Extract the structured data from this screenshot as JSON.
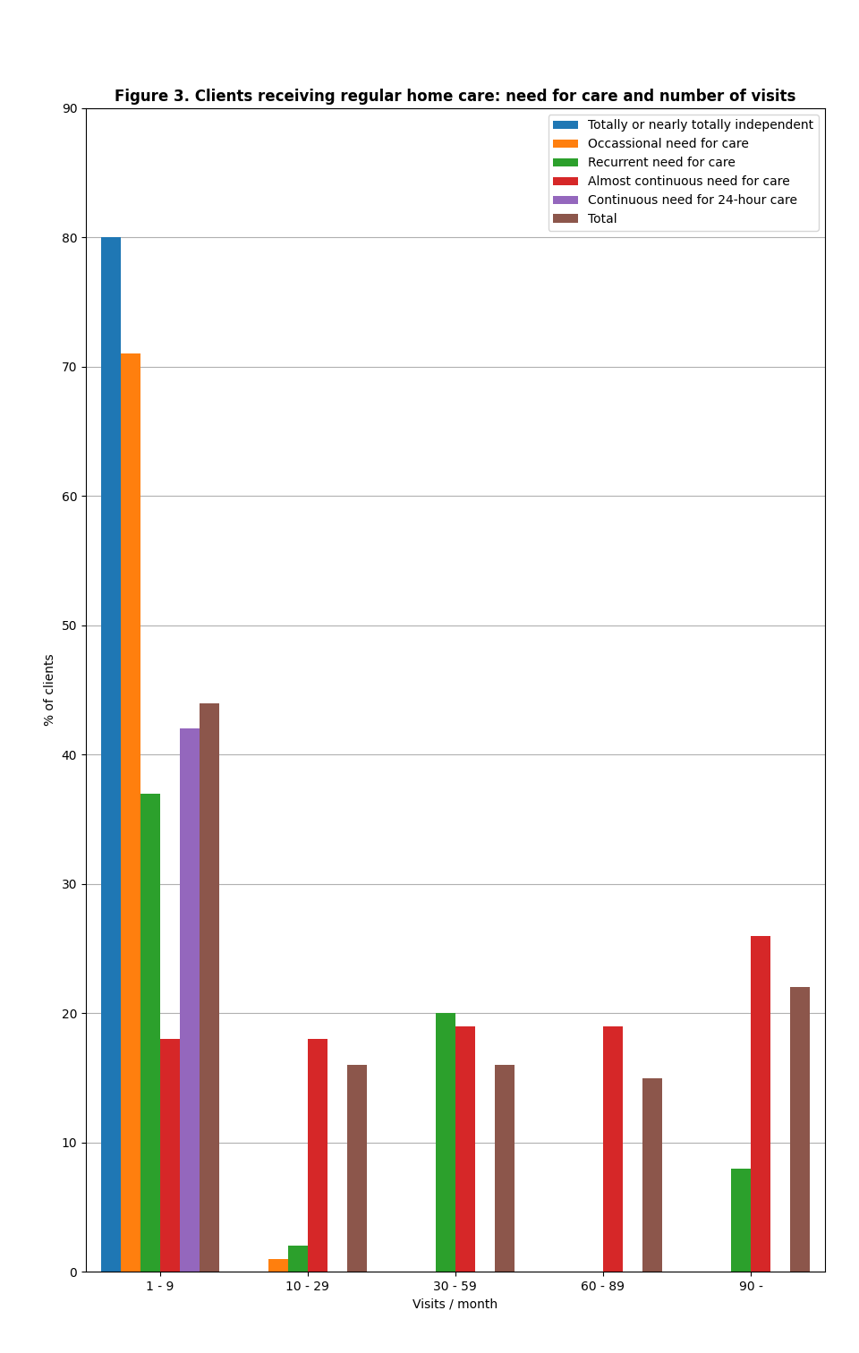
{
  "chart_data": {
    "type": "bar",
    "title": "Figure 3. Clients receiving regular home care: need for care and number of visits",
    "xlabel": "Visits / month",
    "ylabel": "% of clients",
    "categories": [
      "1 - 9",
      "10 - 29",
      "30 - 59",
      "60 - 89",
      "90 -"
    ],
    "series": [
      {
        "name": "Totally or nearly totally independent",
        "values": [
          80,
          0,
          0,
          0,
          0
        ]
      },
      {
        "name": "Occassional need for care",
        "values": [
          71,
          1,
          0,
          0,
          0
        ]
      },
      {
        "name": "Recurrent need for care",
        "values": [
          37,
          2,
          20,
          0,
          8
        ]
      },
      {
        "name": "Almost continuous need for care",
        "values": [
          18,
          18,
          19,
          19,
          26
        ]
      },
      {
        "name": "Continuous need for 24-hour care",
        "values": [
          42,
          0,
          0,
          0,
          0
        ]
      },
      {
        "name": "Total",
        "values": [
          44,
          16,
          16,
          15,
          22
        ]
      }
    ],
    "ylim": [
      0,
      90
    ],
    "yticks": [
      0,
      10,
      20,
      30,
      40,
      50,
      60,
      70,
      80,
      90
    ],
    "grid": true,
    "legend": "upper right"
  }
}
